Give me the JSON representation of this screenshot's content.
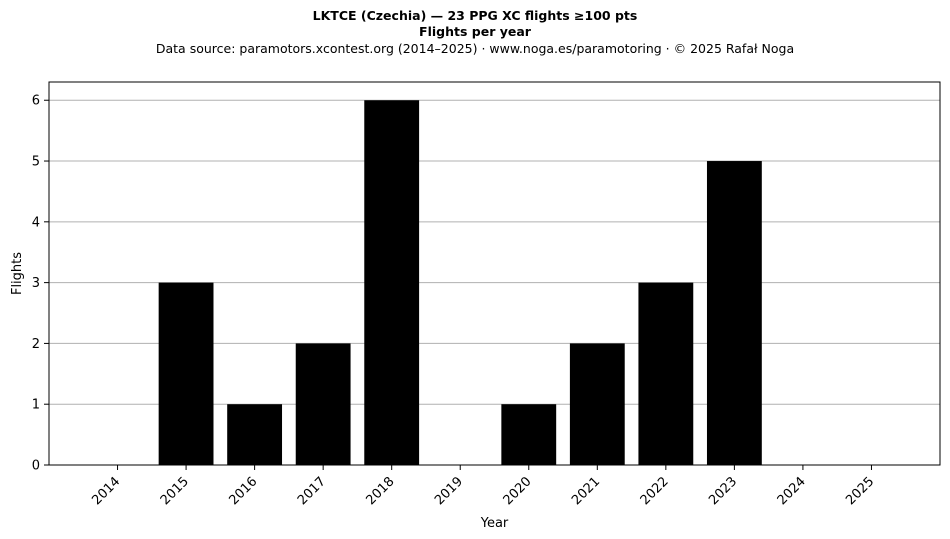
{
  "chart_data": {
    "type": "bar",
    "title": "LKTCE (Czechia)  —  23 PPG XC flights ≥100 pts",
    "subtitle": "Flights per year",
    "source": "Data source: paramotors.xcontest.org (2014–2025)  ·  www.noga.es/paramotoring  ·  © 2025 Rafał Noga",
    "xlabel": "Year",
    "ylabel": "Flights",
    "categories": [
      "2014",
      "2015",
      "2016",
      "2017",
      "2018",
      "2019",
      "2020",
      "2021",
      "2022",
      "2023",
      "2024",
      "2025"
    ],
    "values": [
      0,
      3,
      1,
      2,
      6,
      0,
      1,
      2,
      3,
      5,
      0,
      0
    ],
    "ylim": [
      0,
      6.3
    ],
    "yticks": [
      "0",
      "1",
      "2",
      "3",
      "4",
      "5",
      "6"
    ],
    "grid": "horizontal",
    "bar_color": "#000000",
    "grid_color": "#b0b0b0"
  }
}
